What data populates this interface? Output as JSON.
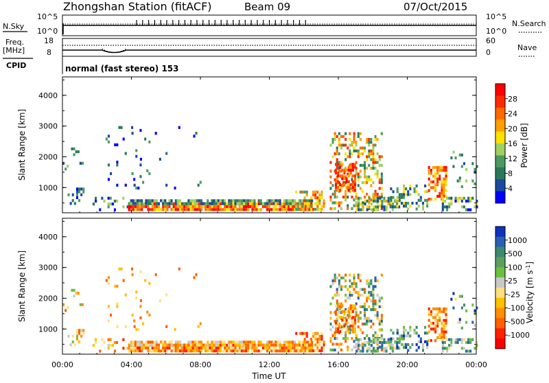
{
  "header": {
    "station": "Zhongshan Station (fitACF)",
    "beam": "Beam 09",
    "date": "07/Oct/2015"
  },
  "status_panels": {
    "nsky_label": "N.Sky",
    "nsearch_label": "N.Search",
    "freq_label": "Freq.",
    "freq_unit": "[MHz]",
    "nave_label": "Nave",
    "cpid_label": "CPID",
    "cpid_text": "normal (fast stereo) 153",
    "nsky_ticks": [
      "10^5",
      "10^0"
    ],
    "nsearch_ticks": [
      "10^5",
      "10^0"
    ],
    "freq_ticks": [
      "18",
      "8"
    ],
    "nave_ticks": [
      "60",
      "0"
    ]
  },
  "chart_data": [
    {
      "type": "heatmap",
      "quantity": "Power",
      "ylabel": "Slant Range [km]",
      "ylim": [
        180,
        4600
      ],
      "y_ticks": [
        "1000",
        "2000",
        "3000",
        "4000"
      ],
      "colorbar_label": "Power [dB]",
      "colorbar_ticks": [
        "28",
        "24",
        "20",
        "16",
        "12",
        "8",
        "4"
      ],
      "colorbar_colors": [
        "#ff0000",
        "#ff2a00",
        "#ff6a00",
        "#ffa000",
        "#ffe000",
        "#a0d060",
        "#4c9a60",
        "#2a7a5a",
        "#1a4aa0",
        "#0000ff"
      ],
      "xlim": [
        0,
        24
      ],
      "x_ticks": [
        "00:00",
        "04:00",
        "08:00",
        "12:00",
        "16:00",
        "20:00",
        "00:00"
      ]
    },
    {
      "type": "heatmap",
      "quantity": "Velocity",
      "ylabel": "Slant Range [km]",
      "ylim": [
        180,
        4600
      ],
      "y_ticks": [
        "1000",
        "2000",
        "3000",
        "4000"
      ],
      "colorbar_label": "Velocity [m s-1]",
      "colorbar_ticks": [
        "1000",
        "500",
        "100",
        "25",
        "-25",
        "-100",
        "-500",
        "-1000"
      ],
      "colorbar_colors": [
        "#1030c0",
        "#2a60b0",
        "#3a8a70",
        "#5aa060",
        "#6cc040",
        "#c8c8c8",
        "#ffe080",
        "#ffc000",
        "#ff9000",
        "#ff6000",
        "#ff2000",
        "#ff0000"
      ],
      "xlabel": "Time UT",
      "xlim": [
        0,
        24
      ],
      "x_ticks": [
        "00:00",
        "04:00",
        "08:00",
        "12:00",
        "16:00",
        "20:00",
        "00:00"
      ]
    }
  ]
}
